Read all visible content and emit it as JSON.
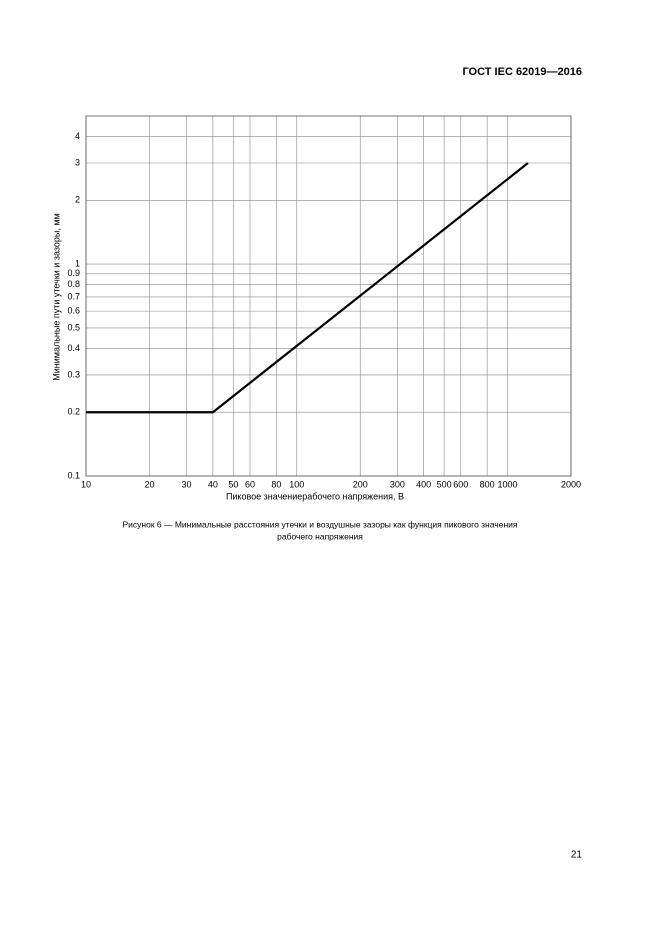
{
  "header": {
    "title": "ГОСТ IEC 62019—2016"
  },
  "chart_data": {
    "type": "line",
    "xlabel": "Пиковое значениерабочего напряжения, В",
    "ylabel": "Минимальные пути утечки и зазоры, мм",
    "x": [
      10,
      40,
      1250
    ],
    "series": [
      {
        "color": "#000000",
        "values": [
          0.2,
          0.2,
          3
        ]
      }
    ],
    "xscale": "log",
    "yscale": "log",
    "xlim": [
      10,
      2000
    ],
    "ylim": [
      0.1,
      5
    ],
    "xticks": [
      10,
      20,
      30,
      40,
      50,
      60,
      80,
      100,
      200,
      300,
      400,
      500,
      600,
      800,
      1000,
      2000
    ],
    "yticks": [
      0.1,
      0.2,
      0.3,
      0.4,
      0.5,
      0.6,
      0.7,
      0.8,
      0.9,
      1,
      2,
      3,
      4
    ],
    "grid": true
  },
  "caption": {
    "line1": "Рисунок 6 — Минимальные расстояния утечки и воздушные зазоры как функция пикового значения",
    "line2": "рабочего напряжения"
  },
  "page_number": "21"
}
